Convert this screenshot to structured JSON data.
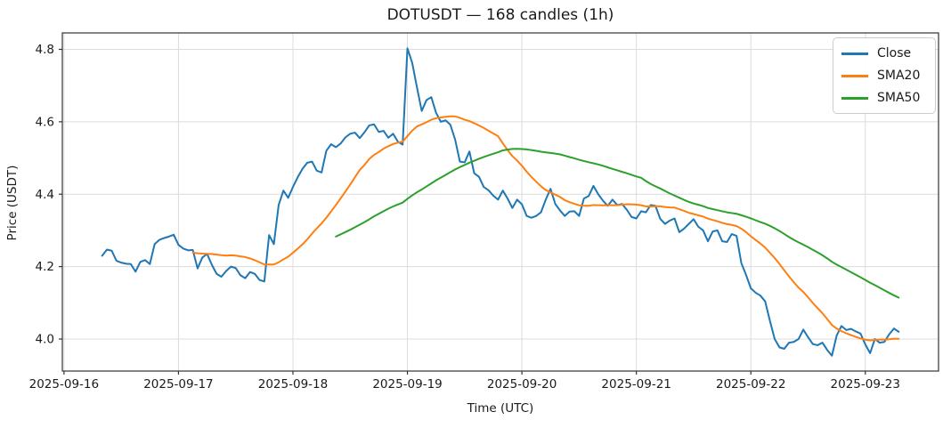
{
  "window": {
    "title": "DOTUSDT — 168 candles (1h)"
  },
  "chart_data": {
    "type": "line",
    "title": "DOTUSDT — 168 candles (1h)",
    "symbol": "DOTUSDT",
    "candle_count": 168,
    "interval": "1h",
    "xlabel": "Time (UTC)",
    "ylabel": "Price (USDT)",
    "grid": true,
    "legend_position": "upper-right",
    "ylim_hint": [
      3.91,
      4.85
    ],
    "y_ticks": [
      {
        "label": "4.0",
        "value": 4.0
      },
      {
        "label": "4.2",
        "value": 4.2
      },
      {
        "label": "4.4",
        "value": 4.4
      },
      {
        "label": "4.6",
        "value": 4.6
      },
      {
        "label": "4.8",
        "value": 4.8
      }
    ],
    "x_ticks": [
      {
        "label": "2025-09-16",
        "hour_offset": -8
      },
      {
        "label": "2025-09-17",
        "hour_offset": 16
      },
      {
        "label": "2025-09-18",
        "hour_offset": 40
      },
      {
        "label": "2025-09-19",
        "hour_offset": 64
      },
      {
        "label": "2025-09-20",
        "hour_offset": 88
      },
      {
        "label": "2025-09-21",
        "hour_offset": 112
      },
      {
        "label": "2025-09-22",
        "hour_offset": 136
      },
      {
        "label": "2025-09-23",
        "hour_offset": 160
      }
    ],
    "series": [
      {
        "name": "Close",
        "color": "#1f77b4",
        "kind": "raw"
      },
      {
        "name": "SMA20",
        "color": "#ff7f0e",
        "kind": "sma",
        "window": 20
      },
      {
        "name": "SMA50",
        "color": "#2ca02c",
        "kind": "sma",
        "window": 50
      }
    ],
    "close_values": [
      4.23,
      4.247,
      4.244,
      4.216,
      4.211,
      4.208,
      4.207,
      4.186,
      4.213,
      4.218,
      4.207,
      4.262,
      4.274,
      4.279,
      4.283,
      4.288,
      4.26,
      4.25,
      4.245,
      4.246,
      4.195,
      4.225,
      4.235,
      4.205,
      4.18,
      4.172,
      4.188,
      4.2,
      4.196,
      4.176,
      4.168,
      4.185,
      4.18,
      4.163,
      4.159,
      4.287,
      4.262,
      4.37,
      4.41,
      4.39,
      4.42,
      4.447,
      4.47,
      4.487,
      4.49,
      4.465,
      4.46,
      4.52,
      4.538,
      4.53,
      4.54,
      4.557,
      4.567,
      4.57,
      4.555,
      4.571,
      4.59,
      4.593,
      4.572,
      4.575,
      4.556,
      4.567,
      4.545,
      4.537,
      4.803,
      4.763,
      4.695,
      4.63,
      4.66,
      4.668,
      4.625,
      4.6,
      4.604,
      4.592,
      4.551,
      4.49,
      4.488,
      4.518,
      4.458,
      4.448,
      4.42,
      4.411,
      4.396,
      4.385,
      4.41,
      4.388,
      4.362,
      4.385,
      4.372,
      4.34,
      4.335,
      4.34,
      4.35,
      4.385,
      4.415,
      4.373,
      4.355,
      4.34,
      4.352,
      4.353,
      4.34,
      4.388,
      4.395,
      4.423,
      4.4,
      4.382,
      4.368,
      4.385,
      4.37,
      4.373,
      4.357,
      4.337,
      4.333,
      4.353,
      4.35,
      4.37,
      4.368,
      4.332,
      4.318,
      4.327,
      4.333,
      4.295,
      4.305,
      4.318,
      4.331,
      4.31,
      4.3,
      4.27,
      4.297,
      4.3,
      4.27,
      4.268,
      4.29,
      4.285,
      4.21,
      4.177,
      4.14,
      4.128,
      4.12,
      4.104,
      4.05,
      4.0,
      3.977,
      3.973,
      3.99,
      3.992,
      4.0,
      4.026,
      4.005,
      3.986,
      3.983,
      3.99,
      3.97,
      3.954,
      4.01,
      4.036,
      4.025,
      4.028,
      4.021,
      4.015,
      3.985,
      3.961,
      4.0,
      3.99,
      3.992,
      4.013,
      4.029,
      4.02
    ]
  },
  "style_hints": {
    "grid_color": "#dcdcdc",
    "spine_color": "#333333",
    "text_color": "#1a1a1a",
    "background": "#ffffff"
  }
}
